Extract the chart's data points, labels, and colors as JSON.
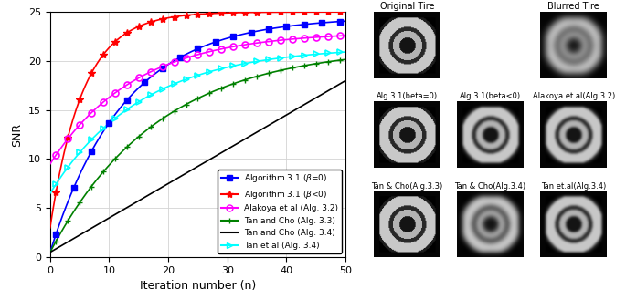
{
  "title": "",
  "xlabel": "Iteration number (n)",
  "ylabel": "SNR",
  "xlim": [
    0,
    50
  ],
  "ylim": [
    0,
    25
  ],
  "xticks": [
    0,
    10,
    20,
    30,
    40,
    50
  ],
  "yticks": [
    0,
    5,
    10,
    15,
    20,
    25
  ],
  "legend_entries": [
    "Algorithm 3.1 (β=0)",
    "Algorithm 3.1 (β<0)",
    "Alakoya et al (Alg. 3.2)",
    "Tan and Cho (Alg. 3.3)",
    "Tan and Cho (Alg. 3.4)",
    "Tan et al (Alg. 3.4)"
  ],
  "line_colors": [
    "blue",
    "red",
    "magenta",
    "green",
    "black",
    "cyan"
  ],
  "line_styles": [
    "-",
    "-",
    "-",
    "-",
    "-",
    "-"
  ],
  "markers": [
    "s",
    "*",
    "o",
    "+",
    "none",
    ">"
  ],
  "image_titles_row1": [
    "Original Tire",
    "Blurred Tire"
  ],
  "image_titles_row2": [
    "Alg.3.1(beta=0)",
    "Alg.3.1(beta<0)",
    "Alakoya et.al(Alg.3.2)"
  ],
  "image_titles_row3": [
    "Tan & Cho(Alg.3.3)",
    "Tan & Cho(Alg.3.4)",
    "Tan et.al(Alg.3.4)"
  ]
}
